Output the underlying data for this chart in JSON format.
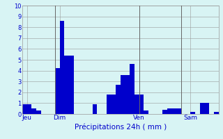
{
  "bar_values": [
    0.9,
    0.9,
    0.5,
    0.3,
    0.0,
    0.0,
    0.0,
    4.2,
    8.6,
    5.4,
    5.4,
    0.0,
    0.0,
    0.0,
    0.0,
    0.9,
    0.0,
    0.0,
    1.8,
    1.8,
    2.7,
    3.6,
    3.6,
    4.6,
    1.8,
    1.8,
    0.3,
    0.0,
    0.0,
    0.0,
    0.4,
    0.5,
    0.5,
    0.5,
    0.0,
    0.0,
    0.2,
    0.0,
    1.0,
    1.0,
    0.0,
    0.2
  ],
  "day_labels": [
    "Jeu",
    "Dim",
    "Ven",
    "Sam"
  ],
  "day_positions": [
    0.5,
    7.5,
    24.5,
    35.5
  ],
  "vline_positions": [
    6.5,
    24.5,
    33.5
  ],
  "xlabel": "Précipitations 24h ( mm )",
  "ylim": [
    0,
    10
  ],
  "yticks": [
    0,
    1,
    2,
    3,
    4,
    5,
    6,
    7,
    8,
    9,
    10
  ],
  "bar_color": "#0000cc",
  "background_color": "#d8f4f4",
  "grid_color": "#999999",
  "xlabel_color": "#0000cc",
  "tick_color": "#0000cc",
  "vline_color": "#666666",
  "figsize": [
    3.2,
    2.0
  ],
  "dpi": 100
}
